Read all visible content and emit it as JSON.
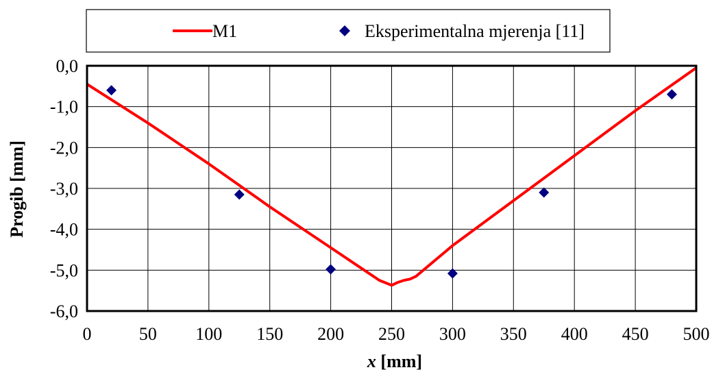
{
  "chart_data": {
    "type": "line",
    "title": "",
    "xlabel_var": "x",
    "xlabel_unit": " [mm]",
    "ylabel": "Progib [mm]",
    "xlim": [
      0,
      500
    ],
    "ylim": [
      -6,
      0
    ],
    "x_ticks": [
      0,
      50,
      100,
      150,
      200,
      250,
      300,
      350,
      400,
      450,
      500
    ],
    "x_tick_labels": [
      "0",
      "50",
      "100",
      "150",
      "200",
      "250",
      "300",
      "350",
      "400",
      "450",
      "500"
    ],
    "y_ticks": [
      0,
      -1,
      -2,
      -3,
      -4,
      -5,
      -6
    ],
    "y_tick_labels": [
      "0,0",
      "-1,0",
      "-2,0",
      "-3,0",
      "-4,0",
      "-5,0",
      "-6,0"
    ],
    "grid": true,
    "legend_position": "top",
    "series": [
      {
        "name": "M1",
        "kind": "line",
        "color": "#ff0000",
        "x": [
          0,
          50,
          100,
          150,
          200,
          230,
          240,
          250,
          255,
          260,
          265,
          270,
          300,
          350,
          400,
          450,
          500
        ],
        "y": [
          -0.45,
          -1.4,
          -2.4,
          -3.45,
          -4.45,
          -5.05,
          -5.25,
          -5.37,
          -5.3,
          -5.25,
          -5.22,
          -5.15,
          -4.4,
          -3.3,
          -2.2,
          -1.1,
          -0.05
        ]
      },
      {
        "name": "Eksperimentalna mjerenja [11]",
        "kind": "scatter",
        "color": "#000080",
        "x": [
          20,
          125,
          200,
          300,
          375,
          480
        ],
        "y": [
          -0.6,
          -3.15,
          -4.98,
          -5.08,
          -3.1,
          -0.7
        ]
      }
    ]
  }
}
